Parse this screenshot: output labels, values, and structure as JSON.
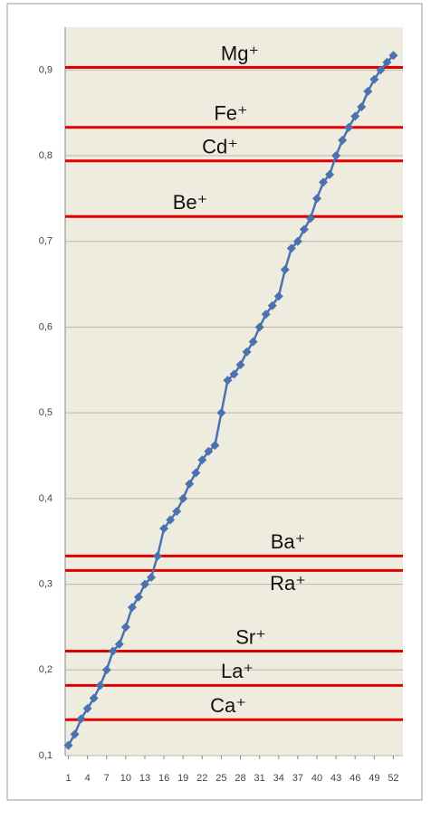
{
  "chart_data": {
    "type": "line",
    "x": [
      1,
      2,
      3,
      4,
      5,
      6,
      7,
      8,
      9,
      10,
      11,
      12,
      13,
      14,
      15,
      16,
      17,
      18,
      19,
      20,
      21,
      22,
      23,
      24,
      25,
      26,
      27,
      28,
      29,
      30,
      31,
      32,
      33,
      34,
      35,
      36,
      37,
      38,
      39,
      40,
      41,
      42,
      43,
      44,
      45,
      46,
      47,
      48,
      49,
      50,
      51,
      52
    ],
    "series": [
      {
        "color": "#4a72b0",
        "values": [
          0.112,
          0.125,
          0.143,
          0.155,
          0.167,
          0.182,
          0.2,
          0.222,
          0.23,
          0.25,
          0.273,
          0.285,
          0.3,
          0.308,
          0.333,
          0.365,
          0.375,
          0.385,
          0.4,
          0.417,
          0.43,
          0.445,
          0.455,
          0.462,
          0.5,
          0.538,
          0.545,
          0.556,
          0.571,
          0.583,
          0.6,
          0.615,
          0.625,
          0.636,
          0.667,
          0.692,
          0.7,
          0.714,
          0.727,
          0.75,
          0.769,
          0.778,
          0.8,
          0.818,
          0.833,
          0.846,
          0.857,
          0.875,
          0.889,
          0.9,
          0.909,
          0.917
        ]
      }
    ],
    "xlim": [
      0.5,
      53.5
    ],
    "xticks": [
      1,
      4,
      7,
      10,
      13,
      16,
      19,
      22,
      25,
      28,
      31,
      34,
      37,
      40,
      43,
      46,
      49,
      52
    ],
    "ylim": [
      0.1,
      0.95
    ],
    "yticks": [
      {
        "value": 0.1,
        "label": "0,1"
      },
      {
        "value": 0.2,
        "label": "0,2"
      },
      {
        "value": 0.3,
        "label": "0,3"
      },
      {
        "value": 0.4,
        "label": "0,4"
      },
      {
        "value": 0.5,
        "label": "0,5"
      },
      {
        "value": 0.6,
        "label": "0,6"
      },
      {
        "value": 0.7,
        "label": "0,7"
      },
      {
        "value": 0.8,
        "label": "0,8"
      },
      {
        "value": 0.9,
        "label": "0,9"
      }
    ],
    "grid": true,
    "reference_lines": [
      {
        "label": "Mg⁺",
        "value": 0.903,
        "color": "#e00000"
      },
      {
        "label": "Fe⁺",
        "value": 0.833,
        "color": "#e00000"
      },
      {
        "label": "Cd⁺",
        "value": 0.794,
        "color": "#e00000"
      },
      {
        "label": "Be⁺",
        "value": 0.729,
        "color": "#e00000"
      },
      {
        "label": "Ba⁺",
        "value": 0.333,
        "color": "#e00000"
      },
      {
        "label": "Ra⁺",
        "value": 0.316,
        "color": "#e00000"
      },
      {
        "label": "Sr⁺",
        "value": 0.222,
        "color": "#e00000"
      },
      {
        "label": "La⁺",
        "value": 0.182,
        "color": "#e00000"
      },
      {
        "label": "Ca⁺",
        "value": 0.142,
        "color": "#e00000"
      }
    ]
  }
}
